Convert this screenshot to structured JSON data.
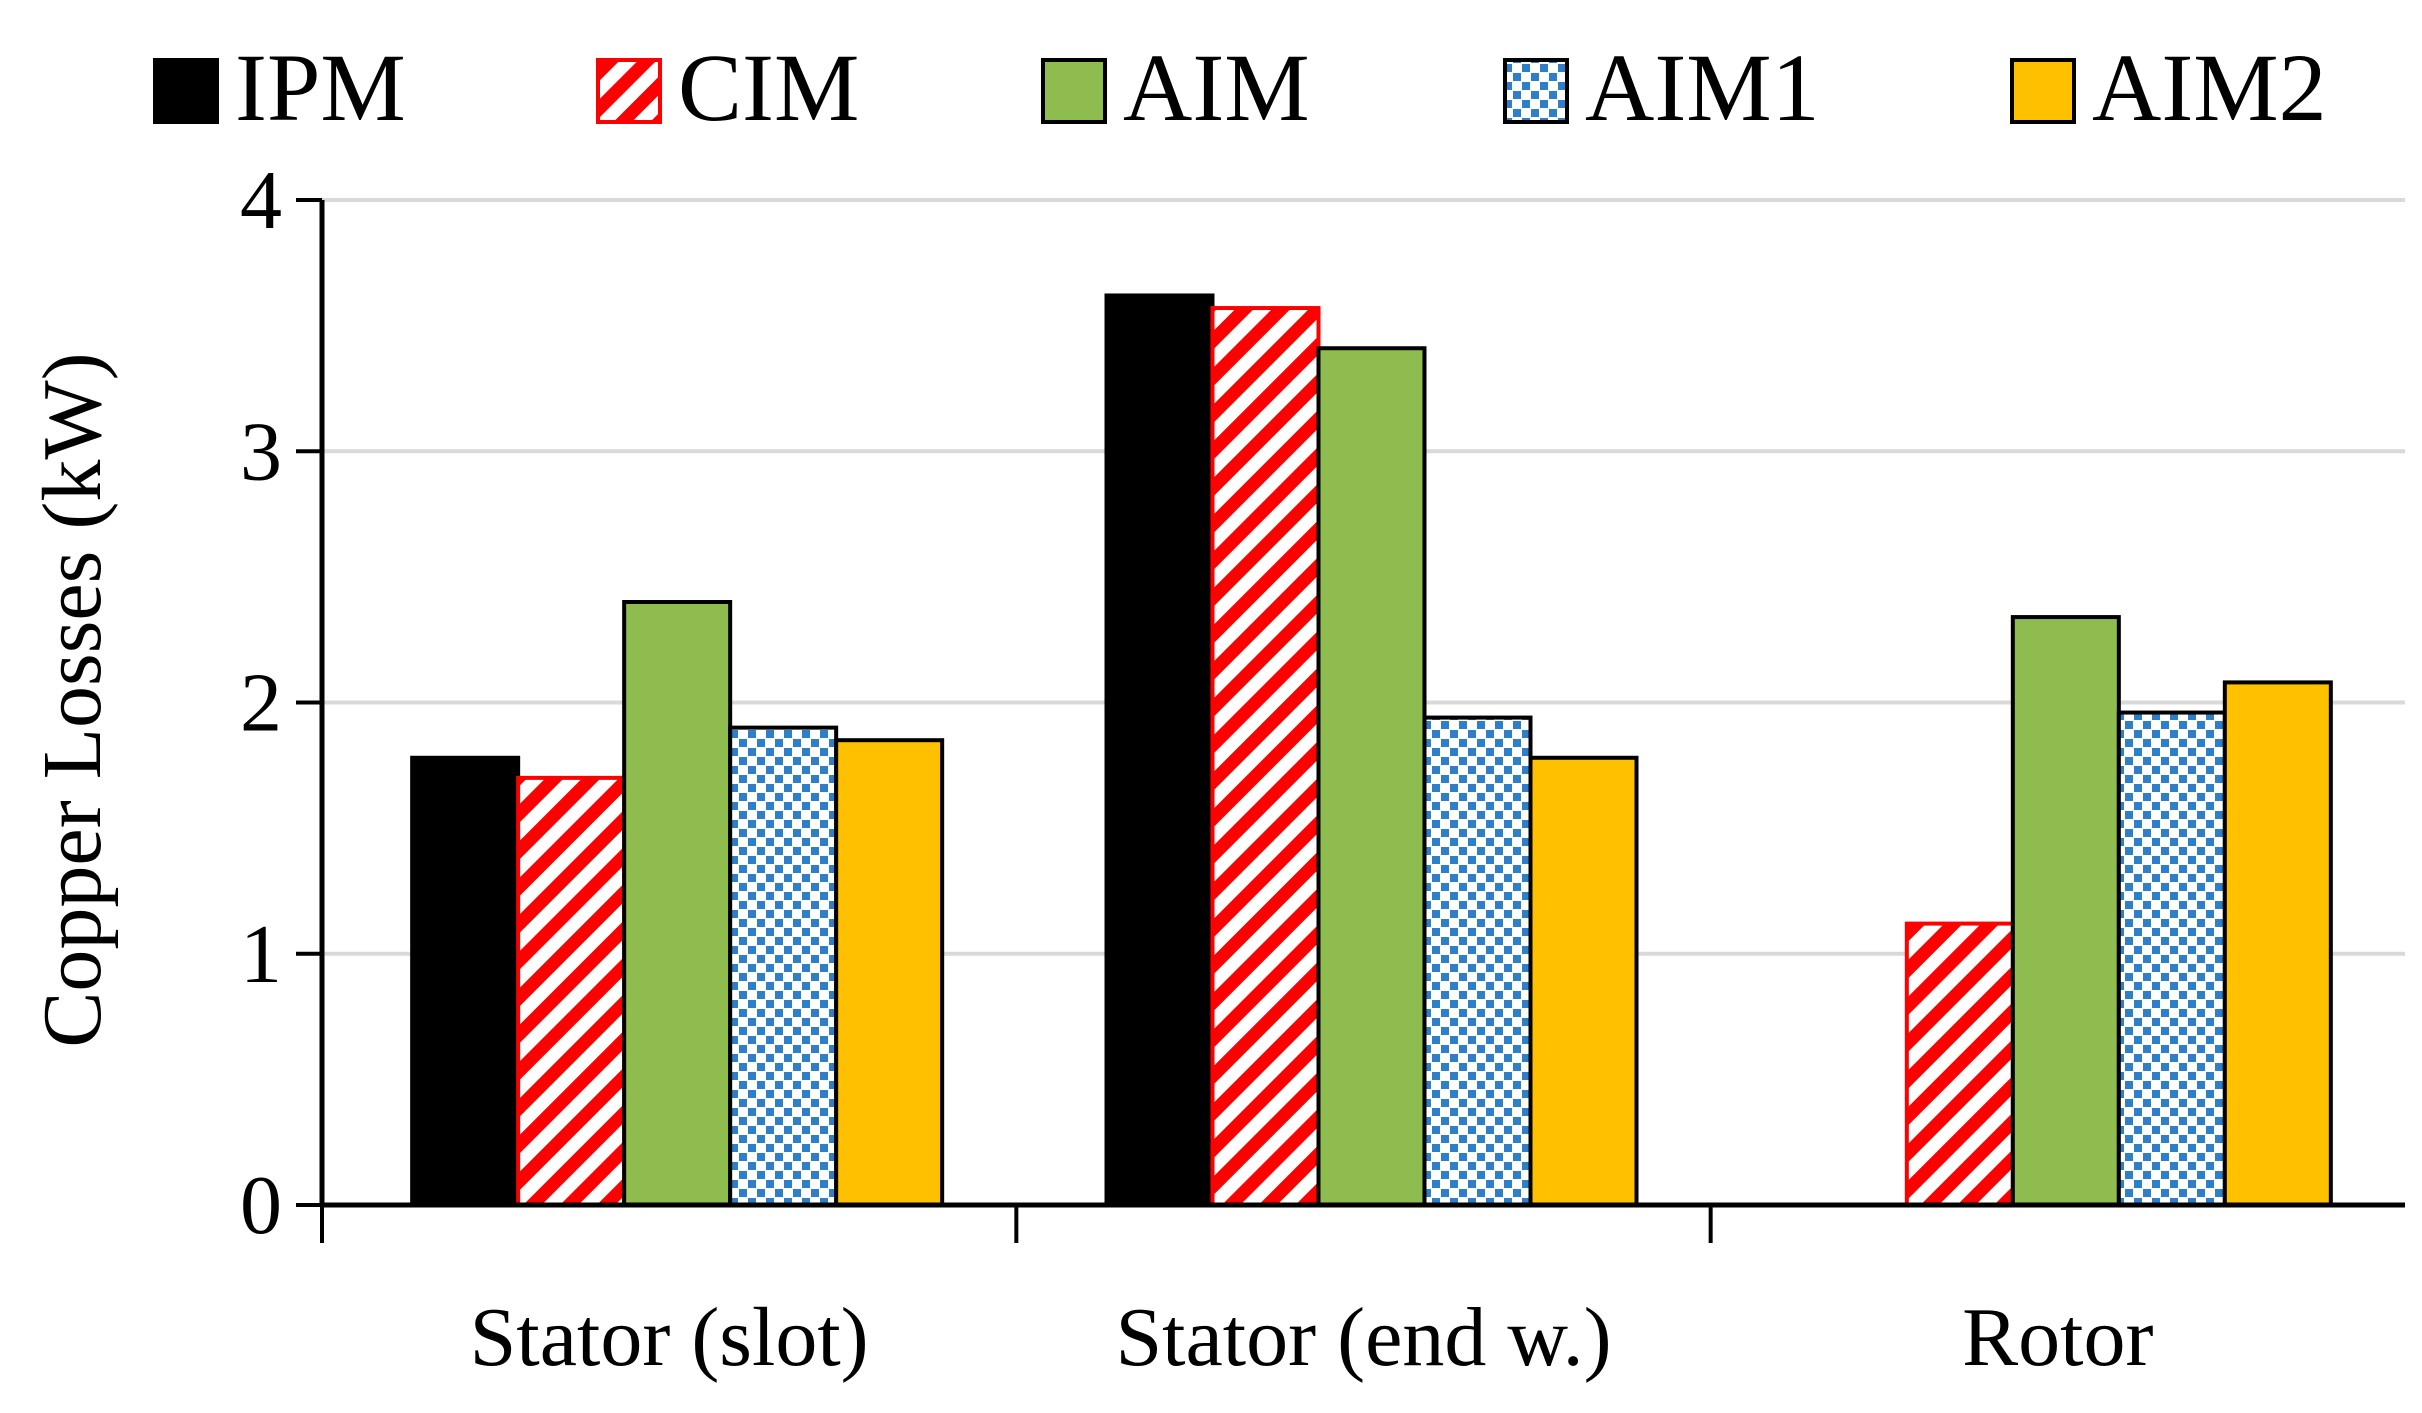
{
  "chart_data": {
    "type": "bar",
    "title": "",
    "xlabel": "",
    "ylabel": "Copper Losses (kW)",
    "ylim": [
      0,
      4
    ],
    "yticks": [
      "0",
      "1",
      "2",
      "3",
      "4"
    ],
    "grid": true,
    "legend_position": "top",
    "categories": [
      "Stator (slot)",
      "Stator (end w.)",
      "Rotor"
    ],
    "series": [
      {
        "name": "IPM",
        "values": [
          1.78,
          3.62,
          0
        ],
        "color": "#000000",
        "pattern": "solid"
      },
      {
        "name": "CIM",
        "values": [
          1.7,
          3.57,
          1.12
        ],
        "color": "#ff0000",
        "pattern": "diagonal-stripes"
      },
      {
        "name": "AIM",
        "values": [
          2.4,
          3.41,
          2.34
        ],
        "color": "#8fbc4f",
        "pattern": "solid"
      },
      {
        "name": "AIM1",
        "values": [
          1.9,
          1.94,
          1.96
        ],
        "color": "#2e7fc8",
        "pattern": "dots"
      },
      {
        "name": "AIM2",
        "values": [
          1.85,
          1.78,
          2.08
        ],
        "color": "#ffc000",
        "pattern": "solid"
      }
    ]
  }
}
